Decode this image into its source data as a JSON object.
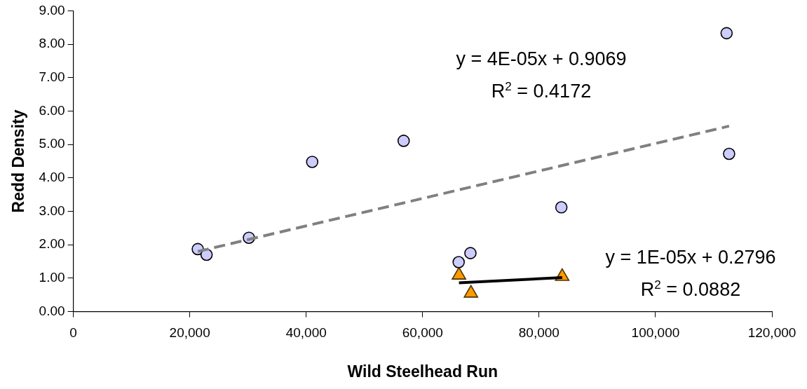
{
  "chart_data": {
    "type": "scatter",
    "xlabel": "Wild Steelhead Run",
    "ylabel": "Redd Density",
    "xlim": [
      0,
      120000
    ],
    "xticks": [
      0,
      {
        "value": 20000,
        "label": "20,000"
      },
      {
        "value": 40000,
        "label": "40,000"
      },
      {
        "value": 60000,
        "label": "60,000"
      },
      {
        "value": 80000,
        "label": "80,000"
      },
      {
        "value": 100000,
        "label": "100,000"
      },
      {
        "value": 120000,
        "label": "120,000"
      }
    ],
    "ylim": [
      0,
      9
    ],
    "yticks": [
      {
        "value": 0,
        "label": "0.00"
      },
      {
        "value": 1,
        "label": "1.00"
      },
      {
        "value": 2,
        "label": "2.00"
      },
      {
        "value": 3,
        "label": "3.00"
      },
      {
        "value": 4,
        "label": "4.00"
      },
      {
        "value": 5,
        "label": "5.00"
      },
      {
        "value": 6,
        "label": "6.00"
      },
      {
        "value": 7,
        "label": "7.00"
      },
      {
        "value": 8,
        "label": "8.00"
      },
      {
        "value": 9,
        "label": "9.00"
      }
    ],
    "grid": false,
    "legend": false,
    "series": [
      {
        "type": "scatter",
        "marker": "circle",
        "color": "#ccccff",
        "x": [
          21380,
          22890,
          30160,
          41030,
          56740,
          66190,
          68210,
          83830,
          112210,
          112640
        ],
        "values": [
          1.87,
          1.7,
          2.21,
          4.48,
          5.11,
          1.48,
          1.75,
          3.12,
          8.33,
          4.72
        ]
      },
      {
        "type": "scatter",
        "marker": "triangle",
        "color": "#ff9900",
        "x": [
          66240,
          68300,
          83970
        ],
        "values": [
          1.09,
          0.55,
          1.05
        ]
      },
      {
        "type": "line",
        "marker": "none",
        "line_style": "dashed",
        "color": "#808080",
        "x": [
          21380,
          112640
        ],
        "values": [
          1.8,
          5.55
        ]
      },
      {
        "type": "line",
        "marker": "none",
        "line_style": "solid",
        "color": "#000000",
        "x": [
          66240,
          83970
        ],
        "values": [
          0.86,
          1.02
        ]
      }
    ],
    "annotations": [
      "y = 4E-05x + 0.9069",
      "R$^{2}$ = 0.4172",
      "y = 1E-05x + 0.2796",
      "R$^{2}$ = 0.0882"
    ]
  }
}
